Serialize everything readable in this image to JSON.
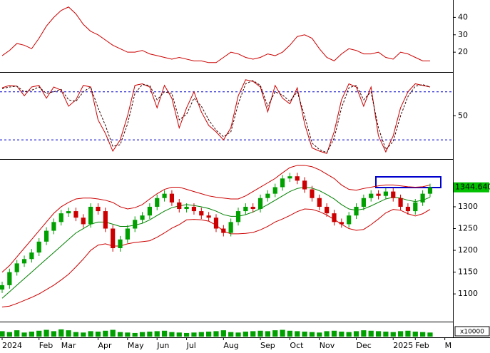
{
  "chart_data": [
    {
      "type": "line",
      "ylim": [
        9,
        50
      ],
      "yticks": [
        20,
        30,
        40
      ],
      "series": [
        {
          "color": "#cc0000",
          "values": [
            18,
            21,
            25,
            24,
            22,
            28,
            35,
            40,
            44,
            46,
            42,
            36,
            32,
            30,
            27,
            24,
            22,
            20,
            20,
            21,
            19,
            18,
            17,
            16,
            17,
            16,
            15,
            15,
            14,
            14,
            17,
            20,
            19,
            17,
            16,
            17,
            19,
            18,
            20,
            24,
            29,
            30,
            28,
            22,
            17,
            15,
            19,
            22,
            21,
            19,
            19,
            20,
            17,
            16,
            20,
            19,
            17,
            15,
            15,
            null,
            null
          ]
        }
      ]
    },
    {
      "type": "line",
      "ylim": [
        -3,
        102
      ],
      "yticks": [
        50
      ],
      "levels": [
        20,
        80
      ],
      "level_color": "#0000cc",
      "series": [
        {
          "color": "#cc0000",
          "values": [
            85,
            88,
            87,
            75,
            86,
            88,
            72,
            86,
            82,
            62,
            70,
            88,
            86,
            45,
            28,
            6,
            20,
            50,
            88,
            90,
            86,
            60,
            88,
            72,
            35,
            60,
            80,
            55,
            38,
            30,
            20,
            35,
            75,
            95,
            93,
            86,
            55,
            88,
            72,
            65,
            85,
            40,
            10,
            6,
            3,
            30,
            70,
            90,
            86,
            62,
            86,
            25,
            5,
            25,
            60,
            80,
            90,
            88,
            86,
            null,
            null
          ]
        },
        {
          "color": "#330000",
          "style": "dashed",
          "values": [
            84,
            86,
            87,
            80,
            82,
            86,
            78,
            80,
            83,
            70,
            68,
            80,
            86,
            60,
            38,
            12,
            14,
            40,
            78,
            89,
            88,
            70,
            80,
            78,
            45,
            52,
            72,
            62,
            45,
            32,
            24,
            30,
            65,
            90,
            94,
            88,
            62,
            80,
            76,
            68,
            80,
            50,
            16,
            8,
            4,
            22,
            60,
            85,
            88,
            70,
            80,
            35,
            8,
            18,
            50,
            74,
            87,
            89,
            86,
            null,
            null
          ]
        }
      ]
    },
    {
      "type": "candlestick",
      "ylim": [
        1038,
        1408
      ],
      "yticks": [
        1100,
        1150,
        1200,
        1250,
        1300
      ],
      "up_color": "#00a000",
      "down_color": "#cc0000",
      "last_price": {
        "value": 1344.64,
        "label": "1344.640"
      },
      "last_price_color": "#00c000",
      "open": [
        1110,
        1120,
        1150,
        1170,
        1180,
        1195,
        1220,
        1245,
        1265,
        1285,
        1290,
        1275,
        1260,
        1300,
        1290,
        1250,
        1205,
        1225,
        1250,
        1270,
        1280,
        1300,
        1320,
        1330,
        1310,
        1295,
        1300,
        1290,
        1280,
        1275,
        1250,
        1240,
        1265,
        1290,
        1300,
        1295,
        1320,
        1330,
        1345,
        1365,
        1370,
        1360,
        1340,
        1320,
        1300,
        1285,
        1265,
        1260,
        1280,
        1300,
        1320,
        1330,
        1325,
        1335,
        1320,
        1300,
        1290,
        1310,
        1330,
        null,
        null
      ],
      "high": [
        1128,
        1158,
        1178,
        1188,
        1203,
        1228,
        1253,
        1273,
        1293,
        1298,
        1298,
        1283,
        1308,
        1308,
        1298,
        1258,
        1233,
        1258,
        1278,
        1288,
        1308,
        1328,
        1338,
        1338,
        1318,
        1308,
        1308,
        1298,
        1288,
        1283,
        1258,
        1273,
        1298,
        1308,
        1308,
        1328,
        1338,
        1353,
        1373,
        1378,
        1378,
        1368,
        1348,
        1328,
        1308,
        1293,
        1273,
        1288,
        1308,
        1328,
        1338,
        1338,
        1343,
        1343,
        1328,
        1308,
        1318,
        1338,
        1353,
        null,
        null
      ],
      "low": [
        1102,
        1112,
        1142,
        1162,
        1172,
        1187,
        1212,
        1237,
        1257,
        1277,
        1267,
        1252,
        1252,
        1282,
        1242,
        1197,
        1197,
        1217,
        1242,
        1262,
        1272,
        1292,
        1312,
        1302,
        1287,
        1287,
        1282,
        1272,
        1267,
        1242,
        1232,
        1232,
        1257,
        1282,
        1287,
        1287,
        1312,
        1322,
        1337,
        1357,
        1352,
        1332,
        1312,
        1292,
        1277,
        1257,
        1252,
        1252,
        1272,
        1292,
        1312,
        1317,
        1317,
        1312,
        1292,
        1282,
        1282,
        1302,
        1322,
        null,
        null
      ],
      "close": [
        1120,
        1150,
        1170,
        1180,
        1195,
        1220,
        1245,
        1265,
        1285,
        1290,
        1275,
        1260,
        1300,
        1290,
        1250,
        1205,
        1225,
        1250,
        1270,
        1280,
        1300,
        1320,
        1330,
        1310,
        1295,
        1300,
        1290,
        1280,
        1275,
        1250,
        1240,
        1265,
        1290,
        1300,
        1295,
        1320,
        1330,
        1345,
        1365,
        1370,
        1360,
        1340,
        1320,
        1300,
        1285,
        1265,
        1260,
        1280,
        1300,
        1320,
        1330,
        1325,
        1335,
        1320,
        1300,
        1290,
        1310,
        1330,
        1344.64,
        null,
        null
      ],
      "bands": [
        {
          "color": "#cc0000",
          "values": [
            1150,
            1165,
            1185,
            1205,
            1225,
            1245,
            1265,
            1285,
            1300,
            1310,
            1318,
            1320,
            1320,
            1318,
            1315,
            1310,
            1300,
            1295,
            1298,
            1305,
            1318,
            1330,
            1340,
            1345,
            1345,
            1340,
            1335,
            1330,
            1325,
            1322,
            1320,
            1318,
            1318,
            1325,
            1335,
            1345,
            1355,
            1365,
            1378,
            1390,
            1395,
            1395,
            1392,
            1385,
            1375,
            1365,
            1350,
            1340,
            1338,
            1342,
            1345,
            1348,
            1350,
            1350,
            1348,
            1346,
            1345,
            1346,
            1350,
            null,
            null
          ]
        },
        {
          "color": "#008000",
          "values": [
            1090,
            1105,
            1120,
            1135,
            1150,
            1165,
            1180,
            1195,
            1210,
            1225,
            1240,
            1250,
            1260,
            1265,
            1265,
            1260,
            1255,
            1255,
            1258,
            1262,
            1270,
            1280,
            1290,
            1298,
            1302,
            1305,
            1303,
            1300,
            1296,
            1290,
            1282,
            1278,
            1278,
            1282,
            1288,
            1296,
            1305,
            1315,
            1325,
            1335,
            1342,
            1345,
            1343,
            1337,
            1328,
            1318,
            1305,
            1295,
            1292,
            1295,
            1302,
            1310,
            1318,
            1322,
            1320,
            1315,
            1312,
            1315,
            1322,
            null,
            null
          ]
        },
        {
          "color": "#cc0000",
          "values": [
            1070,
            1072,
            1078,
            1085,
            1092,
            1100,
            1110,
            1120,
            1132,
            1145,
            1162,
            1180,
            1200,
            1212,
            1215,
            1210,
            1210,
            1215,
            1218,
            1220,
            1222,
            1230,
            1240,
            1251,
            1259,
            1270,
            1271,
            1270,
            1267,
            1258,
            1244,
            1238,
            1238,
            1239,
            1241,
            1247,
            1255,
            1265,
            1272,
            1280,
            1289,
            1295,
            1294,
            1289,
            1281,
            1271,
            1260,
            1250,
            1246,
            1248,
            1259,
            1272,
            1286,
            1294,
            1292,
            1284,
            1279,
            1284,
            1294,
            null,
            null
          ]
        }
      ]
    },
    {
      "type": "bar",
      "ylim": [
        0,
        30
      ],
      "color": "#00a000",
      "unit_label": "x10000",
      "categories": [
        "2024",
        null,
        null,
        null,
        null,
        "Feb",
        null,
        null,
        "Mar",
        null,
        null,
        null,
        null,
        "Apr",
        null,
        null,
        null,
        "May",
        null,
        null,
        null,
        "Jun",
        null,
        null,
        null,
        "Jul",
        null,
        null,
        null,
        null,
        "Aug",
        null,
        null,
        null,
        null,
        "Sep",
        null,
        null,
        null,
        "Oct",
        null,
        null,
        null,
        "Nov",
        null,
        null,
        null,
        null,
        "Dec",
        null,
        null,
        null,
        null,
        "2025",
        null,
        null,
        "Feb",
        null,
        null,
        null,
        "M"
      ],
      "values": [
        12,
        10,
        14,
        9,
        11,
        13,
        15,
        12,
        16,
        14,
        10,
        9,
        12,
        11,
        13,
        15,
        10,
        9,
        8,
        10,
        11,
        12,
        13,
        10,
        9,
        8,
        9,
        10,
        11,
        12,
        14,
        10,
        9,
        11,
        12,
        13,
        12,
        14,
        15,
        13,
        12,
        11,
        10,
        9,
        12,
        13,
        11,
        10,
        12,
        14,
        13,
        12,
        11,
        10,
        12,
        13,
        11,
        10,
        9,
        null,
        null
      ]
    }
  ]
}
